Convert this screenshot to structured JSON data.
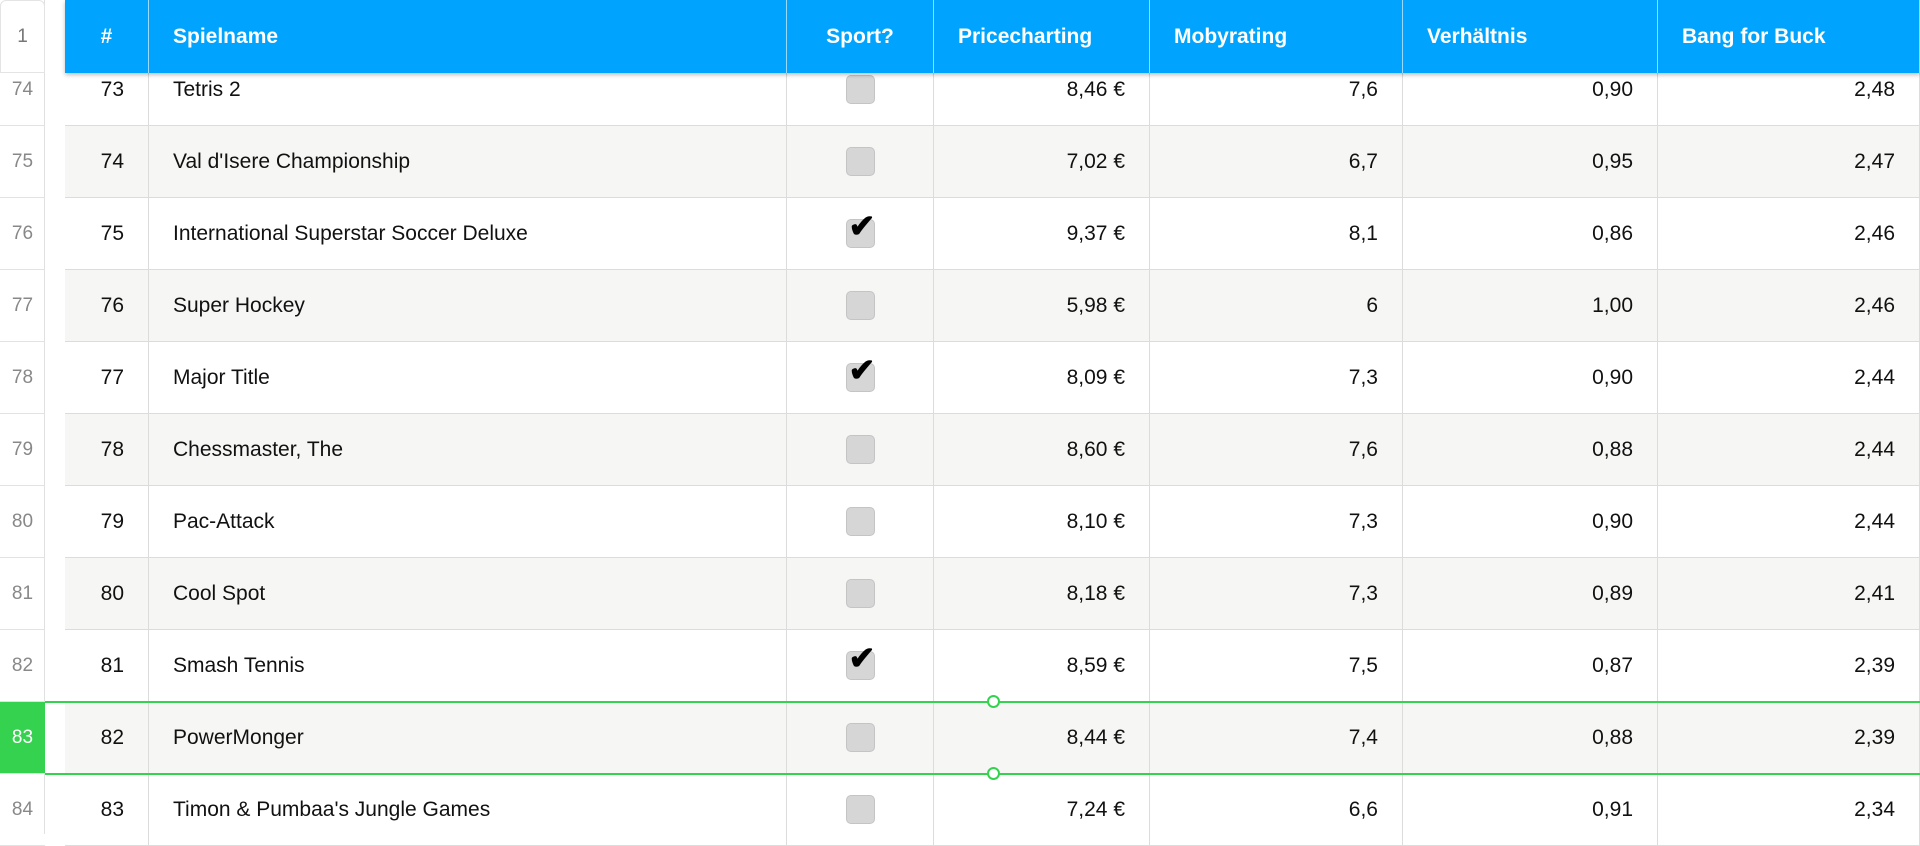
{
  "header_row_number": "1",
  "columns": [
    "#",
    "Spielname",
    "Sport?",
    "Pricecharting",
    "Mobyrating",
    "Verhältnis",
    "Bang for Buck"
  ],
  "selected_row_number": "83",
  "colors": {
    "header_bg": "#00a4ff",
    "selection": "#35d24f"
  },
  "rows": [
    {
      "row": "74",
      "n": "73",
      "name": "Tetris 2",
      "sport": false,
      "price": "8,46 €",
      "moby": "7,6",
      "ratio": "0,90",
      "bfb": "2,48"
    },
    {
      "row": "75",
      "n": "74",
      "name": "Val d'Isere Championship",
      "sport": false,
      "price": "7,02 €",
      "moby": "6,7",
      "ratio": "0,95",
      "bfb": "2,47"
    },
    {
      "row": "76",
      "n": "75",
      "name": "International Superstar Soccer Deluxe",
      "sport": true,
      "price": "9,37 €",
      "moby": "8,1",
      "ratio": "0,86",
      "bfb": "2,46"
    },
    {
      "row": "77",
      "n": "76",
      "name": "Super Hockey",
      "sport": false,
      "price": "5,98 €",
      "moby": "6",
      "ratio": "1,00",
      "bfb": "2,46"
    },
    {
      "row": "78",
      "n": "77",
      "name": "Major Title",
      "sport": true,
      "price": "8,09 €",
      "moby": "7,3",
      "ratio": "0,90",
      "bfb": "2,44"
    },
    {
      "row": "79",
      "n": "78",
      "name": "Chessmaster, The",
      "sport": false,
      "price": "8,60 €",
      "moby": "7,6",
      "ratio": "0,88",
      "bfb": "2,44"
    },
    {
      "row": "80",
      "n": "79",
      "name": "Pac-Attack",
      "sport": false,
      "price": "8,10 €",
      "moby": "7,3",
      "ratio": "0,90",
      "bfb": "2,44"
    },
    {
      "row": "81",
      "n": "80",
      "name": "Cool Spot",
      "sport": false,
      "price": "8,18 €",
      "moby": "7,3",
      "ratio": "0,89",
      "bfb": "2,41"
    },
    {
      "row": "82",
      "n": "81",
      "name": "Smash Tennis",
      "sport": true,
      "price": "8,59 €",
      "moby": "7,5",
      "ratio": "0,87",
      "bfb": "2,39"
    },
    {
      "row": "83",
      "n": "82",
      "name": "PowerMonger",
      "sport": false,
      "price": "8,44 €",
      "moby": "7,4",
      "ratio": "0,88",
      "bfb": "2,39"
    },
    {
      "row": "84",
      "n": "83",
      "name": "Timon & Pumbaa's Jungle Games",
      "sport": false,
      "price": "7,24 €",
      "moby": "6,6",
      "ratio": "0,91",
      "bfb": "2,34"
    }
  ]
}
